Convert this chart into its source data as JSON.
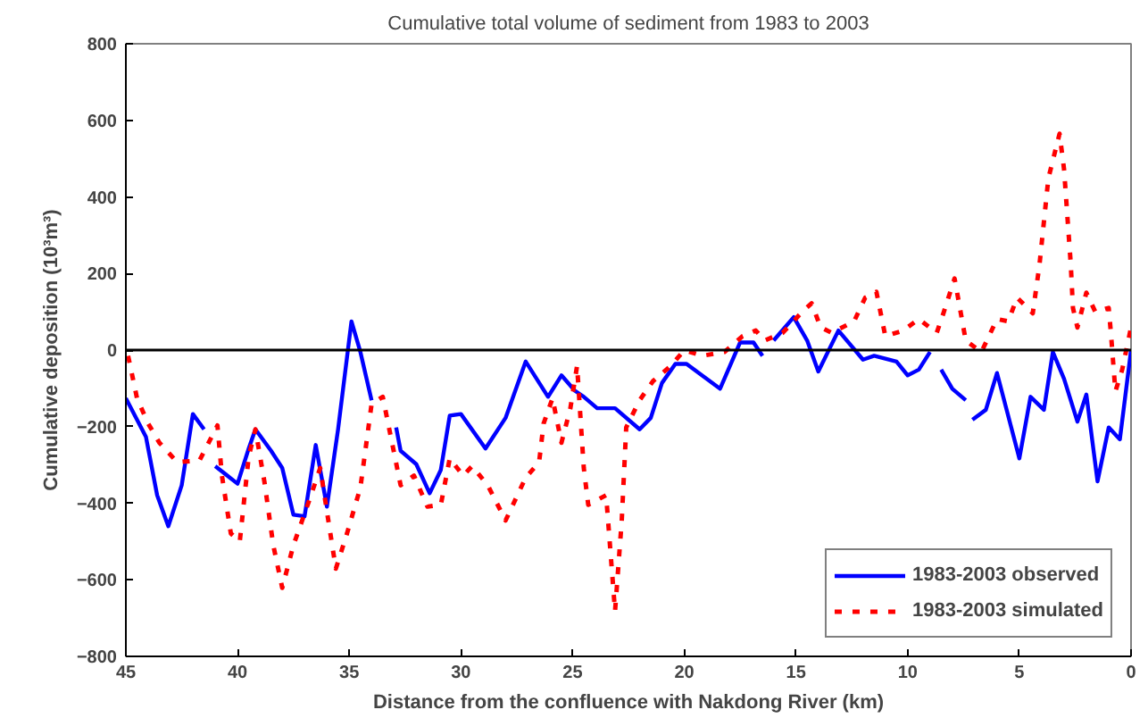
{
  "chart_data": {
    "type": "line",
    "title": "Cumulative total volume of sediment from 1983 to 2003",
    "xlabel": "Distance from the confluence with Nakdong River (km)",
    "ylabel": "Cumulative deposition (10³m³)",
    "xlim": [
      45,
      0
    ],
    "xticks": [
      45,
      40,
      35,
      30,
      25,
      20,
      15,
      10,
      5,
      0
    ],
    "ylim": [
      -800,
      800
    ],
    "yticks": [
      -800,
      -600,
      -400,
      -200,
      0,
      200,
      400,
      600,
      800
    ],
    "grid": false,
    "legend": "bottom right",
    "ref_lines": [
      {
        "axis": "y",
        "value": 0,
        "color": "#000000"
      }
    ],
    "series": [
      {
        "name": "1983-2003 observed",
        "color": "#0000ff",
        "line_style": "solid",
        "x": [
          45,
          44.1,
          43.6,
          43.1,
          42.5,
          42.0,
          41.5,
          41.2,
          41.0,
          40.0,
          39.5,
          39.2,
          38.5,
          38.0,
          37.5,
          37.0,
          36.5,
          36.0,
          35.5,
          34.9,
          34.5,
          34.0,
          33.5,
          32.9,
          32.7,
          32.0,
          31.4,
          30.9,
          30.5,
          30.0,
          28.9,
          28.0,
          27.1,
          26.1,
          25.5,
          24.9,
          24.5,
          23.9,
          23.1,
          22.0,
          21.5,
          21.0,
          20.4,
          19.9,
          18.4,
          17.5,
          16.9,
          16.5,
          16.2,
          16.0,
          15.1,
          14.5,
          14.0,
          13.1,
          12.0,
          11.5,
          10.5,
          10.0,
          9.5,
          9.0,
          8.8,
          8.5,
          8.0,
          7.4,
          7.25,
          7.1,
          6.5,
          6.0,
          5.0,
          4.5,
          3.9,
          3.5,
          3.0,
          2.4,
          2.0,
          1.5,
          1.0,
          0.5,
          0
        ],
        "values": [
          -126,
          -227,
          -379,
          -460,
          -353,
          -167,
          -207,
          null,
          -303,
          -349,
          -257,
          -207,
          -263,
          -308,
          -430,
          -434,
          -248,
          -409,
          -207,
          75,
          -5,
          -131,
          null,
          -202,
          -263,
          -298,
          -374,
          -313,
          -171,
          -167,
          -257,
          -177,
          -30,
          -122,
          -66,
          -106,
          -122,
          -152,
          -152,
          -207,
          -177,
          -86,
          -36,
          -36,
          -101,
          20,
          20,
          -15,
          null,
          25,
          86,
          25,
          -56,
          51,
          -25,
          -15,
          -30,
          -66,
          -51,
          -5,
          null,
          -51,
          -101,
          -131,
          null,
          -182,
          -156,
          -60,
          -283,
          -122,
          -156,
          -5,
          -75,
          -187,
          -116,
          -343,
          -202,
          -233,
          0
        ]
      },
      {
        "name": "1983-2003 simulated",
        "color": "#ff0000",
        "line_style": "dashed",
        "x": [
          44.9,
          44.5,
          44.0,
          43.5,
          42.7,
          41.7,
          40.9,
          40.7,
          40.3,
          39.9,
          39.5,
          39.2,
          38.8,
          38.4,
          38.0,
          37.5,
          36.8,
          36.3,
          35.6,
          35.1,
          34.5,
          34.0,
          33.5,
          32.7,
          32.1,
          31.5,
          30.9,
          30.5,
          29.9,
          29.5,
          28.8,
          28.0,
          27.1,
          26.5,
          26.3,
          25.9,
          25.5,
          25.1,
          24.8,
          24.5,
          24.3,
          23.5,
          23.1,
          22.8,
          22.6,
          22.0,
          21.4,
          20.6,
          20.0,
          19.2,
          18.2,
          17.4,
          16.8,
          16.4,
          15.6,
          14.7,
          14.3,
          13.9,
          13.4,
          12.4,
          11.9,
          11.4,
          11.0,
          10.2,
          9.5,
          8.7,
          8.4,
          7.9,
          7.4,
          6.7,
          6.0,
          5.5,
          5.1,
          4.4,
          4.1,
          3.7,
          3.2,
          3.0,
          2.7,
          2.6,
          2.4,
          2.0,
          1.6,
          1.0,
          0.9,
          0.7,
          0.4,
          0.0
        ],
        "values": [
          -15,
          -126,
          -192,
          -242,
          -293,
          -288,
          -197,
          -328,
          -479,
          -500,
          -278,
          -207,
          -343,
          -510,
          -621,
          -510,
          -394,
          -308,
          -571,
          -479,
          -359,
          -141,
          -122,
          -353,
          -328,
          -409,
          -404,
          -283,
          -328,
          -303,
          -353,
          -445,
          -333,
          -293,
          -192,
          -126,
          -242,
          -152,
          -41,
          -308,
          -404,
          -379,
          -682,
          -445,
          -202,
          -131,
          -81,
          -41,
          0,
          -15,
          -5,
          36,
          51,
          25,
          45,
          101,
          122,
          60,
          45,
          75,
          137,
          152,
          36,
          51,
          81,
          45,
          96,
          187,
          25,
          -5,
          81,
          75,
          137,
          96,
          222,
          449,
          565,
          473,
          226,
          110,
          59,
          150,
          100,
          110,
          44,
          -108,
          -52,
          59
        ]
      }
    ]
  }
}
